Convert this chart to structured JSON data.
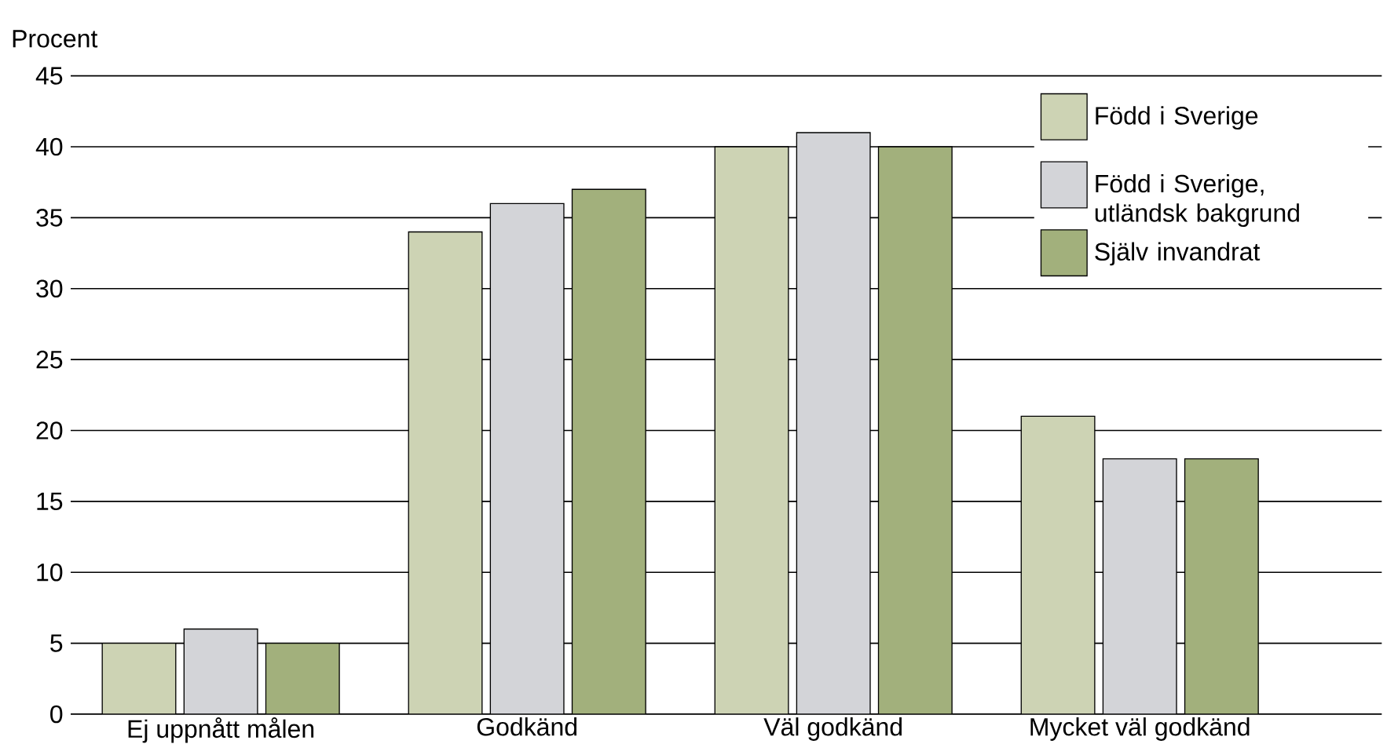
{
  "chart_data": {
    "type": "bar",
    "ylabel": "Procent",
    "categories": [
      "Ej uppnått målen",
      "Godkänd",
      "Väl godkänd",
      "Mycket väl godkänd"
    ],
    "series": [
      {
        "name": "Född i Sverige",
        "color": "#cdd3b4",
        "values": [
          5,
          34,
          40,
          21
        ]
      },
      {
        "name": "Född i Sverige, utländsk bakgrund",
        "color": "#d3d4d8",
        "values": [
          6,
          36,
          41,
          18
        ]
      },
      {
        "name": "Själv invandrat",
        "color": "#a2b07c",
        "values": [
          5,
          37,
          40,
          18
        ]
      }
    ],
    "ylim": [
      0,
      45
    ],
    "yticks": [
      0,
      5,
      10,
      15,
      20,
      25,
      30,
      35,
      40,
      45
    ],
    "grid": "y",
    "legend": "top right"
  }
}
